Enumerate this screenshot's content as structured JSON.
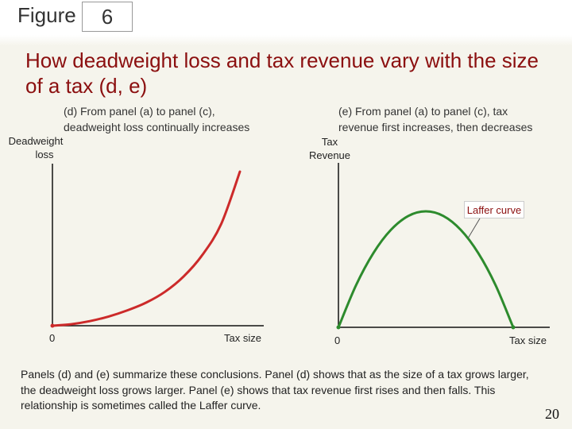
{
  "header": {
    "figure_label": "Figure",
    "figure_number": "6"
  },
  "title": "How deadweight loss and tax revenue vary with the size of a tax (d, e)",
  "footer": {
    "description": "Panels (d) and (e) summarize these conclusions. Panel (d) shows that as the size of a tax grows larger, the deadweight loss grows larger. Panel (e) shows that tax revenue first rises and then falls. This relationship is sometimes called the Laffer curve.",
    "page_number": "20"
  },
  "colors": {
    "title": "#8b0f0f",
    "dwl_curve": "#cc2a2a",
    "laffer_curve": "#2d8b2d"
  },
  "chart_data": [
    {
      "type": "line",
      "panel_title_line1": "(d) From panel (a) to panel (c),",
      "panel_title_line2": "deadweight loss continually increases",
      "ylabel_line1": "Deadweight",
      "ylabel_line2": "loss",
      "xlabel": "Tax size",
      "origin_label": "0",
      "grid": false,
      "series": [
        {
          "color": "#cc2a2a",
          "x": [
            0,
            0.1,
            0.2,
            0.3,
            0.4,
            0.5,
            0.6,
            0.7,
            0.8,
            0.9,
            1.0
          ],
          "y": [
            0,
            0.01,
            0.03,
            0.06,
            0.1,
            0.15,
            0.22,
            0.32,
            0.46,
            0.66,
            1.0
          ]
        }
      ]
    },
    {
      "type": "line",
      "panel_title_line1": "(e) From panel (a) to panel (c), tax",
      "panel_title_line2": "revenue first increases, then decreases",
      "ylabel_line1": "Tax",
      "ylabel_line2": "Revenue",
      "xlabel": "Tax size",
      "origin_label": "0",
      "grid": false,
      "annotation": "Laffer curve",
      "series": [
        {
          "color": "#2d8b2d",
          "x": [
            0,
            0.1,
            0.2,
            0.3,
            0.4,
            0.5,
            0.6,
            0.7,
            0.8,
            0.9,
            1.0
          ],
          "y": [
            0,
            0.36,
            0.64,
            0.84,
            0.96,
            1.0,
            0.96,
            0.84,
            0.64,
            0.36,
            0
          ]
        }
      ]
    }
  ]
}
